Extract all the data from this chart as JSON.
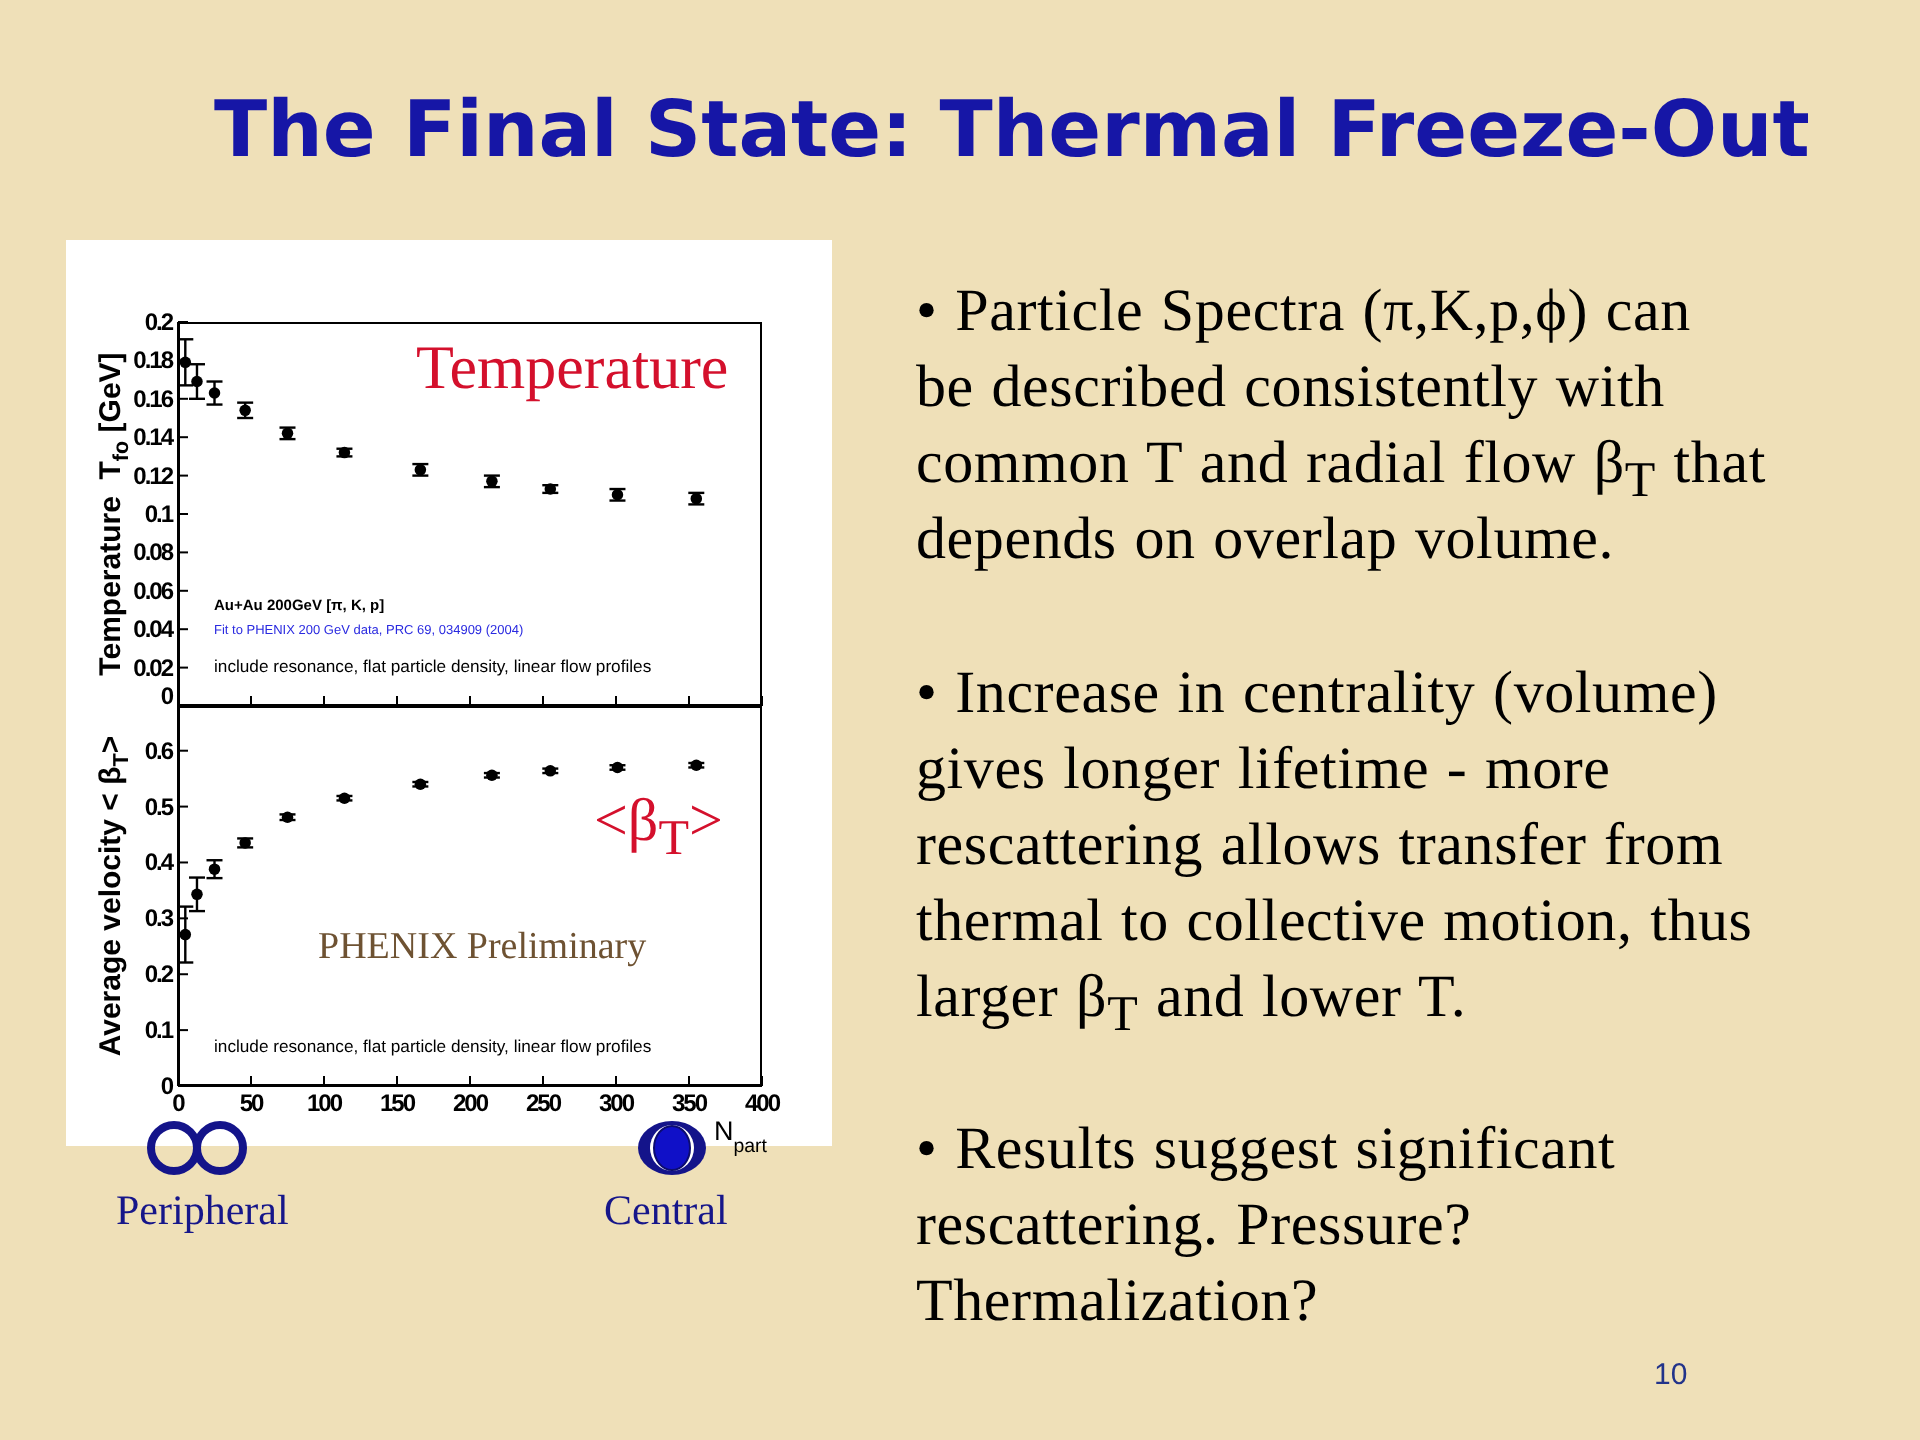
{
  "chart_data": [
    {
      "type": "other",
      "title": "The Final State: Thermal Freeze-Out",
      "annotations": [
        "• Particle Spectra (π,K,p,ϕ) can\nbe described consistently with\ncommon T and radial flow β$_{T}$ that\ndepends on overlap volume.",
        "• Increase in centrality (volume)\ngives longer lifetime - more\nrescattering allows transfer from\nthermal to collective motion, thus\nlarger β$_{T}$ and lower T.",
        "• Results suggest significant\nrescattering. Pressure?\nThermalization?",
        "10"
      ]
    },
    {
      "type": "scatter",
      "ylabel": "Temperature  T$_{fo}$ [GeV]",
      "x": [
        5,
        13,
        25,
        46,
        75,
        114,
        166,
        215,
        255,
        301,
        355
      ],
      "values": [
        0.179,
        0.169,
        0.163,
        0.154,
        0.142,
        0.132,
        0.123,
        0.117,
        0.113,
        0.11,
        0.108
      ],
      "errors": [
        0.012,
        0.009,
        0.006,
        0.004,
        0.003,
        0.002,
        0.003,
        0.003,
        0.002,
        0.003,
        0.003
      ],
      "color": "#000000",
      "marker": "circle",
      "xlim": [
        0,
        400
      ],
      "xticks": [
        0,
        50,
        100,
        150,
        200,
        250,
        300,
        350,
        400
      ],
      "ylim": [
        0,
        0.2
      ],
      "yticks": [
        0,
        0.02,
        0.04,
        0.06,
        0.08,
        0.1,
        0.12,
        0.14,
        0.16,
        0.18,
        0.2
      ],
      "tick_labels": "y",
      "annotations": [
        "Temperature",
        "Au+Au 200GeV [π, K, p]",
        "Fit to PHENIX 200 GeV data,  PRC 69, 034909 (2004)",
        "include resonance, flat particle density, linear flow profiles"
      ]
    },
    {
      "type": "scatter",
      "xlabel": "N$_{part}$",
      "ylabel": "Average velocity < β$_{T}$>",
      "x": [
        5,
        13,
        25,
        46,
        75,
        114,
        166,
        215,
        255,
        301,
        355
      ],
      "values": [
        0.271,
        0.343,
        0.388,
        0.435,
        0.481,
        0.515,
        0.54,
        0.556,
        0.564,
        0.57,
        0.574
      ],
      "errors": [
        0.05,
        0.03,
        0.016,
        0.008,
        0.005,
        0.004,
        0.004,
        0.004,
        0.004,
        0.004,
        0.004
      ],
      "color": "#000000",
      "marker": "circle",
      "xlim": [
        0,
        400
      ],
      "xticks": [
        0,
        50,
        100,
        150,
        200,
        250,
        300,
        350,
        400
      ],
      "ylim": [
        0,
        0.68
      ],
      "yticks": [
        0,
        0.1,
        0.2,
        0.3,
        0.4,
        0.5,
        0.6
      ],
      "annotations": [
        "<β$_{T}$>",
        "PHENIX Preliminary",
        "include resonance, flat particle density, linear flow profiles",
        "Peripheral",
        "Central"
      ]
    }
  ]
}
